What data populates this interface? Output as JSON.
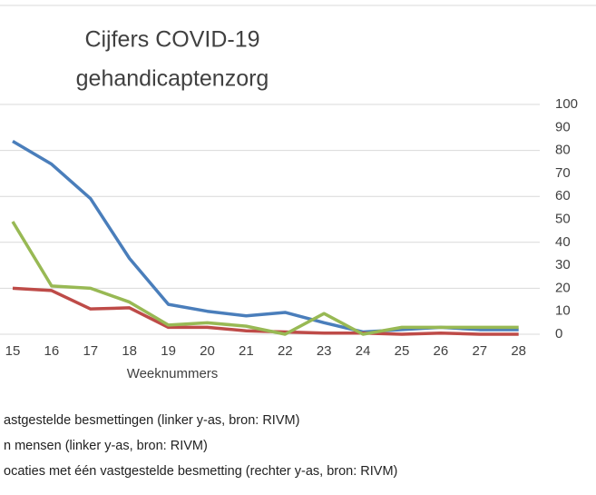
{
  "chart_data": {
    "type": "line",
    "title": [
      "Cijfers  COVID-19",
      "gehandicaptenzorg"
    ],
    "x_label": "Weeknummers",
    "categories": [
      "15",
      "16",
      "17",
      "18",
      "19",
      "20",
      "21",
      "22",
      "23",
      "24",
      "25",
      "26",
      "27",
      "28"
    ],
    "series": [
      {
        "name": "astgestelde besmettingen  (linker y-as, bron: RIVM)",
        "color": "#4a7ebb",
        "axis": "y",
        "values": [
          84,
          74,
          59,
          33,
          13,
          10,
          8,
          9.5,
          5,
          1,
          2,
          3,
          2,
          2
        ]
      },
      {
        "name": "n mensen  (linker y-as, bron: RIVM)",
        "color": "#be4b48",
        "axis": "y",
        "values": [
          20,
          19,
          11,
          11.5,
          3,
          3,
          1.5,
          1,
          0.5,
          0.5,
          0,
          0.5,
          0,
          0
        ]
      },
      {
        "name": "ocaties met één vastgestelde besmetting  (rechter y-as, bron: RIVM)",
        "color": "#98b954",
        "axis": "y2",
        "values": [
          49,
          21,
          20,
          14,
          4,
          5,
          3.5,
          0,
          9,
          0,
          3,
          3,
          3,
          3
        ]
      }
    ],
    "ylim": [
      0,
      100
    ],
    "yticks": [
      0,
      20,
      40,
      60,
      80,
      100
    ],
    "y2lim": [
      0,
      100
    ],
    "y2ticks": [
      0,
      10,
      20,
      30,
      40,
      50,
      60,
      70,
      80,
      90,
      100
    ],
    "grid": true
  }
}
